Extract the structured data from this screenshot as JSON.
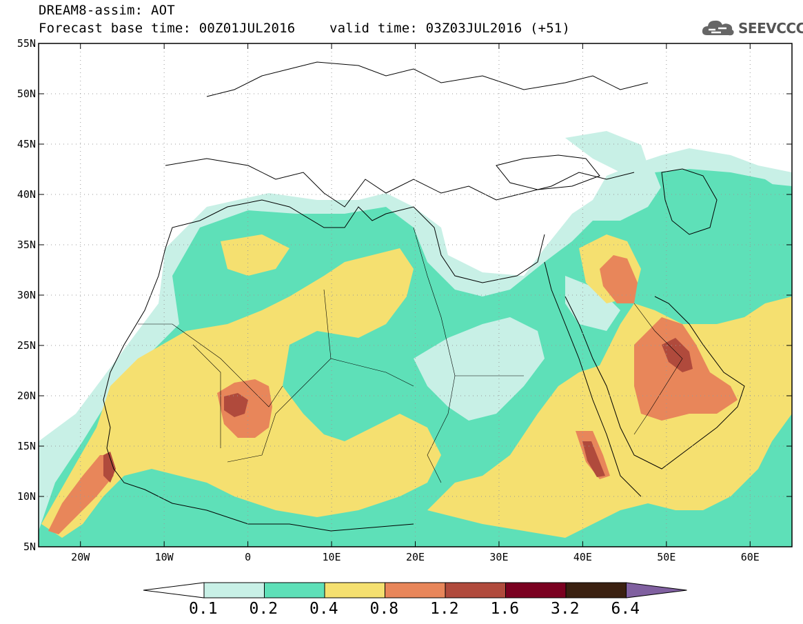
{
  "header": {
    "model_line": "DREAM8-assim: AOT",
    "base_time_line": "Forecast base time: 00Z01JUL2016",
    "valid_time_line": "valid time: 03Z03JUL2016 (+51)"
  },
  "logo": {
    "text": "SEEVCCC",
    "icon": "cloud-icon"
  },
  "axes": {
    "lat_labels": [
      "55N",
      "50N",
      "45N",
      "40N",
      "35N",
      "30N",
      "25N",
      "20N",
      "15N",
      "10N",
      "5N"
    ],
    "lat_values": [
      55,
      50,
      45,
      40,
      35,
      30,
      25,
      20,
      15,
      10,
      5
    ],
    "lon_labels": [
      "20W",
      "10W",
      "0",
      "10E",
      "20E",
      "30E",
      "40E",
      "50E",
      "60E"
    ],
    "lon_values": [
      -20,
      -10,
      0,
      10,
      20,
      30,
      40,
      50,
      60
    ],
    "lon_range": [
      -25,
      65
    ],
    "lat_range": [
      5,
      55
    ],
    "grid": "dotted"
  },
  "legend": {
    "labels": [
      "0.1",
      "0.2",
      "0.4",
      "0.8",
      "1.2",
      "1.6",
      "3.2",
      "6.4"
    ],
    "colors": [
      "#c8f0e6",
      "#5ee0b8",
      "#f5e070",
      "#e8865a",
      "#b04a3c",
      "#7a0020",
      "#3a2010",
      "#8060a0"
    ],
    "below_color": "#ffffff"
  }
}
